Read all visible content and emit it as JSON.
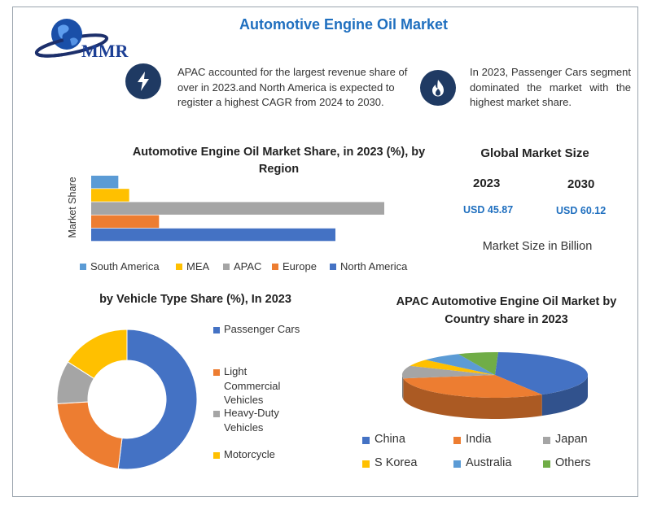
{
  "title": "Automotive Engine Oil Market",
  "logo": {
    "text": "MMR",
    "icon": "globe-icon"
  },
  "info": [
    {
      "icon": "lightning-icon",
      "text": "APAC accounted for the largest revenue share of over in 2023.and North America is expected to register a highest CAGR from 2024 to 2030."
    },
    {
      "icon": "flame-icon",
      "text": "In 2023, Passenger Cars segment dominated the market with the highest market share."
    }
  ],
  "global_market": {
    "title": "Global Market Size",
    "years": [
      "2023",
      "2030"
    ],
    "values": [
      "USD 45.87",
      "USD 60.12"
    ],
    "unit_note": "Market Size in Billion"
  },
  "colors": {
    "south_america": "#5b9bd5",
    "mea": "#ffc000",
    "apac": "#a5a5a5",
    "europe": "#ed7d31",
    "north_america": "#4472c4",
    "china": "#4472c4",
    "india": "#ed7d31",
    "japan": "#a5a5a5",
    "s_korea": "#ffc000",
    "australia": "#5b9bd5",
    "others": "#70ad47"
  },
  "chart_data": [
    {
      "type": "bar",
      "orientation": "horizontal",
      "title": "Automotive Engine Oil Market Share, in 2023 (%), by Region",
      "ylabel": "Market Share",
      "categories": [
        "South America",
        "MEA",
        "APAC",
        "Europe",
        "North America"
      ],
      "values": [
        5,
        7,
        54,
        12.5,
        45
      ],
      "xlim": [
        0,
        60
      ],
      "legend_position": "bottom",
      "grid": false
    },
    {
      "type": "pie",
      "variant": "donut",
      "title": "by Vehicle Type Share (%), In 2023",
      "categories": [
        "Passenger Cars",
        "Light Commercial Vehicles",
        "Heavy-Duty Vehicles",
        "Motorcycle"
      ],
      "legend_labels": [
        "Passenger Cars",
        "Light Commercial Vehicles",
        "Heavy-Duty Vehicles",
        "Motorcycle"
      ],
      "values": [
        52,
        22,
        10,
        16
      ],
      "legend_position": "right"
    },
    {
      "type": "pie",
      "variant": "3d",
      "title": "APAC Automotive Engine Oil Market by Country share in 2023",
      "categories": [
        "China",
        "India",
        "Japan",
        "S Korea",
        "Australia",
        "Others"
      ],
      "values": [
        41,
        31,
        9,
        5,
        7,
        7
      ],
      "legend_position": "bottom"
    }
  ]
}
